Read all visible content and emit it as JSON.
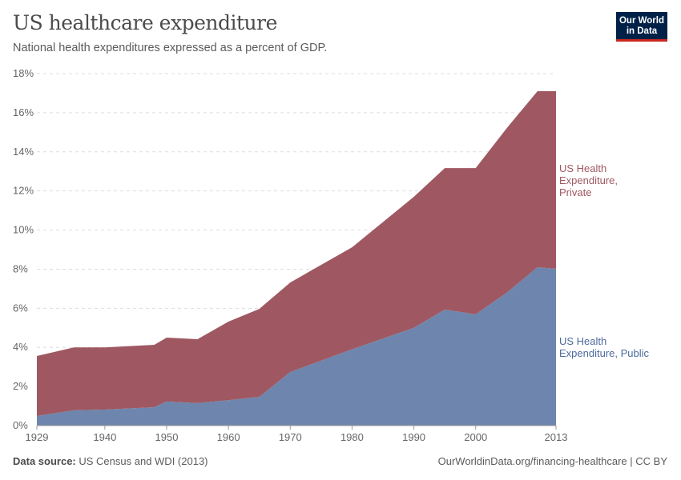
{
  "header": {
    "title": "US healthcare expenditure",
    "subtitle": "National health expenditures expressed as a percent of GDP.",
    "logo": "Our World in Data"
  },
  "footer": {
    "source_label": "Data source:",
    "source": "US Census and WDI (2013)",
    "credit": "OurWorldinData.org/financing-healthcare | CC BY"
  },
  "chart_data": {
    "type": "area",
    "stacked": true,
    "x": [
      1929,
      1935,
      1940,
      1948,
      1950,
      1955,
      1960,
      1965,
      1970,
      1980,
      1990,
      1995,
      2000,
      2005,
      2010,
      2013
    ],
    "xticks": [
      1929,
      1940,
      1950,
      1960,
      1970,
      1980,
      1990,
      2000,
      2013
    ],
    "yticks": [
      0,
      2,
      4,
      6,
      8,
      10,
      12,
      14,
      16,
      18
    ],
    "ylim": [
      0,
      18
    ],
    "yunit": "%",
    "grid": true,
    "legend": "right",
    "series": [
      {
        "name": "US Health Expenditure, Public",
        "color": "#6e86ad",
        "values": [
          0.49,
          0.78,
          0.82,
          0.94,
          1.23,
          1.15,
          1.3,
          1.47,
          2.74,
          3.9,
          5.0,
          5.93,
          5.69,
          6.79,
          8.1,
          8.02
        ]
      },
      {
        "name": "US Health Expenditure, Private",
        "color": "#9f5861",
        "values": [
          3.07,
          3.22,
          3.18,
          3.19,
          3.27,
          3.27,
          4.02,
          4.5,
          4.58,
          5.22,
          6.7,
          7.24,
          7.48,
          8.41,
          9.0,
          9.08
        ]
      }
    ],
    "legend_lines": {
      "public": [
        "US Health",
        "Expenditure, Public"
      ],
      "private": [
        "US Health",
        "Expenditure,",
        "Private"
      ]
    }
  }
}
